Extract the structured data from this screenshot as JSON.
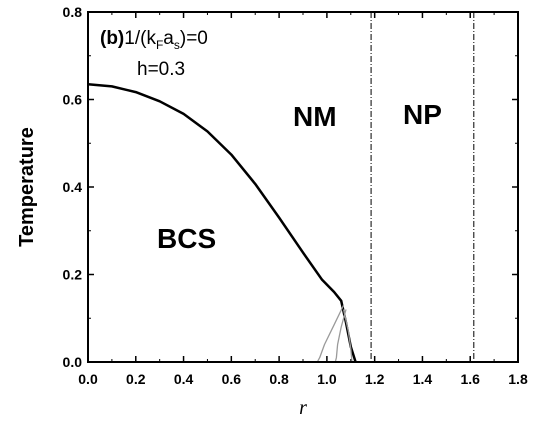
{
  "chart_data": {
    "type": "line",
    "xlabel": "r",
    "ylabel": "Temperature",
    "xlim": [
      0.0,
      1.8
    ],
    "ylim": [
      0.0,
      0.8
    ],
    "xticks": [
      "0.0",
      "0.2",
      "0.4",
      "0.6",
      "0.8",
      "1.0",
      "1.2",
      "1.4",
      "1.6",
      "1.8"
    ],
    "yticks": [
      "0.0",
      "0.2",
      "0.4",
      "0.6",
      "0.8"
    ],
    "annotation": {
      "panel": "(b)",
      "line1_pre": "1/(k",
      "sub_F": "F",
      "line1_mid": "a",
      "sub_s": "s",
      "line1_post": ")=0",
      "line2": "h=0.3"
    },
    "regions": [
      "BCS",
      "NM",
      "NP"
    ],
    "series": [
      {
        "style": "solid-black",
        "points": [
          [
            0.0,
            0.635
          ],
          [
            0.1,
            0.63
          ],
          [
            0.2,
            0.617
          ],
          [
            0.3,
            0.596
          ],
          [
            0.4,
            0.567
          ],
          [
            0.5,
            0.527
          ],
          [
            0.6,
            0.474
          ],
          [
            0.7,
            0.407
          ],
          [
            0.8,
            0.33
          ],
          [
            0.9,
            0.25
          ],
          [
            0.98,
            0.188
          ],
          [
            1.03,
            0.16
          ],
          [
            1.06,
            0.14
          ],
          [
            1.08,
            0.09
          ],
          [
            1.1,
            0.035
          ],
          [
            1.12,
            0.0
          ]
        ]
      },
      {
        "style": "gray",
        "points": [
          [
            1.07,
            0.13
          ],
          [
            1.03,
            0.085
          ],
          [
            0.99,
            0.04
          ],
          [
            0.97,
            0.01
          ],
          [
            0.96,
            0.0
          ]
        ]
      },
      {
        "style": "gray",
        "points": [
          [
            1.08,
            0.12
          ],
          [
            1.06,
            0.08
          ],
          [
            1.045,
            0.04
          ],
          [
            1.04,
            0.01
          ],
          [
            1.035,
            0.0
          ]
        ]
      },
      {
        "style": "gray",
        "points": [
          [
            1.07,
            0.12
          ],
          [
            1.09,
            0.07
          ],
          [
            1.1,
            0.03
          ],
          [
            1.105,
            0.0
          ]
        ]
      }
    ],
    "vlines": [
      1.185,
      1.615
    ],
    "grid": false,
    "legend": "none"
  }
}
